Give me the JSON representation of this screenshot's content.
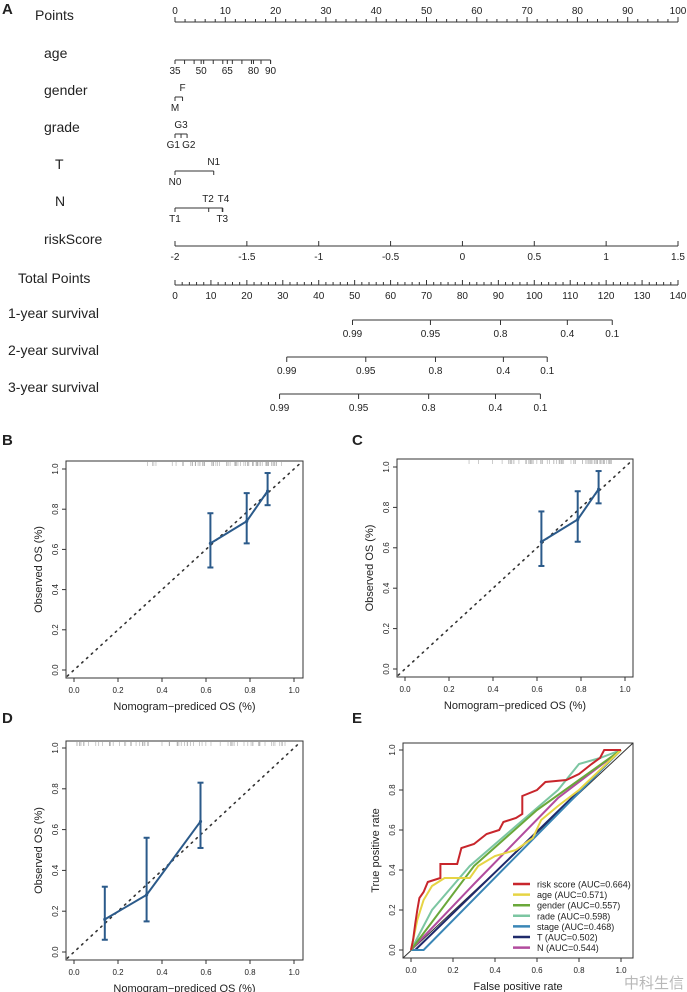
{
  "panel_labels": [
    "A",
    "B",
    "C",
    "D",
    "E"
  ],
  "watermark": "中科生信",
  "chart_data": [
    {
      "type": "nomogram",
      "panel": "A",
      "rows": [
        {
          "label": "Points",
          "kind": "points",
          "ticks": [
            0,
            10,
            20,
            30,
            40,
            50,
            60,
            70,
            80,
            90,
            100
          ]
        },
        {
          "label": "age",
          "kind": "var",
          "ticks": [
            {
              "t": "35",
              "p": 0,
              "pos": "below"
            },
            {
              "t": "50",
              "p": 5.2,
              "pos": "below"
            },
            {
              "t": "65",
              "p": 10.4,
              "pos": "below"
            },
            {
              "t": "80",
              "p": 15.6,
              "pos": "below"
            },
            {
              "t": "90",
              "p": 19
            }
          ],
          "minor_count": 11
        },
        {
          "label": "gender",
          "kind": "var",
          "ticks": [
            {
              "t": "M",
              "p": 0,
              "pos": "below"
            },
            {
              "t": "F",
              "p": 1.5,
              "pos": "above"
            }
          ]
        },
        {
          "label": "grade",
          "kind": "var",
          "ticks": [
            {
              "t": "G1",
              "p": 0,
              "pos": "below"
            },
            {
              "t": "G3",
              "p": 1.2,
              "pos": "above"
            },
            {
              "t": "G2",
              "p": 2.4,
              "pos": "below"
            }
          ]
        },
        {
          "label": "T",
          "kind": "var",
          "ticks": [
            {
              "t": "N0",
              "p": 0,
              "pos": "below"
            },
            {
              "t": "N1",
              "p": 7.7,
              "pos": "above"
            }
          ]
        },
        {
          "label": "N",
          "kind": "var",
          "ticks": [
            {
              "t": "T1",
              "p": 0,
              "pos": "below"
            },
            {
              "t": "T2",
              "p": 6.7,
              "pos": "above"
            },
            {
              "t": "T3",
              "p": 9.4,
              "pos": "below"
            },
            {
              "t": "T4",
              "p": 9.5,
              "pos": "above"
            }
          ]
        },
        {
          "label": "riskScore",
          "kind": "risk",
          "ticks": [
            "-2",
            "-1.5",
            "-1",
            "-0.5",
            "0",
            "0.5",
            "1",
            "1.5"
          ],
          "range": [
            -2,
            1.5
          ]
        },
        {
          "label": "Total Points",
          "kind": "total",
          "ticks": [
            0,
            10,
            20,
            30,
            40,
            50,
            60,
            70,
            80,
            90,
            100,
            110,
            120,
            130,
            140
          ],
          "range": [
            0,
            140
          ]
        },
        {
          "label": "1-year survival",
          "kind": "surv",
          "ticks": [
            {
              "t": "0.99",
              "tp": 49.4
            },
            {
              "t": "0.95",
              "tp": 71.1
            },
            {
              "t": "0.8",
              "tp": 90.6
            },
            {
              "t": "0.4",
              "tp": 109.2
            },
            {
              "t": "0.1",
              "tp": 121.7
            }
          ]
        },
        {
          "label": "2-year survival",
          "kind": "surv",
          "ticks": [
            {
              "t": "0.99",
              "tp": 31.1
            },
            {
              "t": "0.95",
              "tp": 53.1
            },
            {
              "t": "0.8",
              "tp": 72.5
            },
            {
              "t": "0.4",
              "tp": 91.4
            },
            {
              "t": "0.1",
              "tp": 103.6
            }
          ]
        },
        {
          "label": "3-year survival",
          "kind": "surv",
          "ticks": [
            {
              "t": "0.99",
              "tp": 29.1
            },
            {
              "t": "0.95",
              "tp": 51.1
            },
            {
              "t": "0.8",
              "tp": 70.6
            },
            {
              "t": "0.4",
              "tp": 89.2
            },
            {
              "t": "0.1",
              "tp": 101.7
            }
          ]
        }
      ]
    },
    {
      "type": "calibration",
      "panel": "B",
      "xlabel": "Nomogram−prediced OS (%)",
      "ylabel": "Observed OS (%)",
      "xlim": [
        0,
        1
      ],
      "ylim": [
        0,
        1
      ],
      "xticks": [
        "0.0",
        "0.2",
        "0.4",
        "0.6",
        "0.8",
        "1.0"
      ],
      "yticks": [
        "0.0",
        "0.2",
        "0.4",
        "0.6",
        "0.8",
        "1.0"
      ],
      "points": [
        {
          "x": 0.62,
          "y": 0.63,
          "lo": 0.51,
          "hi": 0.78
        },
        {
          "x": 0.785,
          "y": 0.74,
          "lo": 0.63,
          "hi": 0.88
        },
        {
          "x": 0.88,
          "y": 0.89,
          "lo": 0.82,
          "hi": 0.98
        }
      ],
      "color": "#2b5a8a"
    },
    {
      "type": "calibration",
      "panel": "C",
      "xlabel": "Nomogram−prediced OS (%)",
      "ylabel": "Observed OS (%)",
      "xlim": [
        0,
        1
      ],
      "ylim": [
        0,
        1
      ],
      "xticks": [
        "0.0",
        "0.2",
        "0.4",
        "0.6",
        "0.8",
        "1.0"
      ],
      "yticks": [
        "0.0",
        "0.2",
        "0.4",
        "0.6",
        "0.8",
        "1.0"
      ],
      "points": [
        {
          "x": 0.62,
          "y": 0.63,
          "lo": 0.51,
          "hi": 0.78
        },
        {
          "x": 0.785,
          "y": 0.74,
          "lo": 0.63,
          "hi": 0.88
        },
        {
          "x": 0.88,
          "y": 0.89,
          "lo": 0.82,
          "hi": 0.98
        }
      ],
      "color": "#2b5a8a"
    },
    {
      "type": "calibration",
      "panel": "D",
      "xlabel": "Nomogram−prediced OS (%)",
      "ylabel": "Observed OS (%)",
      "xlim": [
        0,
        1
      ],
      "ylim": [
        0,
        1
      ],
      "xticks": [
        "0.0",
        "0.2",
        "0.4",
        "0.6",
        "0.8",
        "1.0"
      ],
      "yticks": [
        "0.0",
        "0.2",
        "0.4",
        "0.6",
        "0.8",
        "1.0"
      ],
      "points": [
        {
          "x": 0.14,
          "y": 0.16,
          "lo": 0.06,
          "hi": 0.32
        },
        {
          "x": 0.33,
          "y": 0.28,
          "lo": 0.15,
          "hi": 0.56
        },
        {
          "x": 0.575,
          "y": 0.64,
          "lo": 0.51,
          "hi": 0.83
        }
      ],
      "color": "#2b5a8a"
    },
    {
      "type": "line",
      "panel": "E",
      "xlabel": "False positive rate",
      "ylabel": "True positive rate",
      "xlim": [
        0,
        1
      ],
      "ylim": [
        0,
        1
      ],
      "xticks": [
        "0.0",
        "0.2",
        "0.4",
        "0.6",
        "0.8",
        "1.0"
      ],
      "yticks": [
        "0.0",
        "0.2",
        "0.4",
        "0.6",
        "0.8",
        "1.0"
      ],
      "legend_position": "bottom-right",
      "series": [
        {
          "name": "risk score (AUC=0.664)",
          "color": "#c8262c",
          "points": [
            [
              0,
              0
            ],
            [
              0.01,
              0.05
            ],
            [
              0.02,
              0.13
            ],
            [
              0.03,
              0.2
            ],
            [
              0.04,
              0.26
            ],
            [
              0.06,
              0.29
            ],
            [
              0.08,
              0.34
            ],
            [
              0.14,
              0.36
            ],
            [
              0.14,
              0.43
            ],
            [
              0.22,
              0.43
            ],
            [
              0.24,
              0.51
            ],
            [
              0.3,
              0.53
            ],
            [
              0.36,
              0.58
            ],
            [
              0.42,
              0.6
            ],
            [
              0.44,
              0.64
            ],
            [
              0.5,
              0.66
            ],
            [
              0.53,
              0.68
            ],
            [
              0.53,
              0.77
            ],
            [
              0.6,
              0.8
            ],
            [
              0.64,
              0.84
            ],
            [
              0.74,
              0.85
            ],
            [
              0.8,
              0.88
            ],
            [
              0.86,
              0.93
            ],
            [
              0.9,
              0.96
            ],
            [
              0.92,
              1
            ],
            [
              1,
              1
            ]
          ]
        },
        {
          "name": "age (AUC=0.571)",
          "color": "#e6d444",
          "points": [
            [
              0,
              0
            ],
            [
              0.03,
              0.15
            ],
            [
              0.06,
              0.25
            ],
            [
              0.1,
              0.32
            ],
            [
              0.16,
              0.36
            ],
            [
              0.28,
              0.36
            ],
            [
              0.32,
              0.42
            ],
            [
              0.4,
              0.47
            ],
            [
              0.5,
              0.5
            ],
            [
              0.58,
              0.56
            ],
            [
              0.62,
              0.65
            ],
            [
              0.7,
              0.72
            ],
            [
              0.8,
              0.8
            ],
            [
              0.9,
              0.9
            ],
            [
              1,
              1
            ]
          ]
        },
        {
          "name": "gender (AUC=0.557)",
          "color": "#6aa83a",
          "points": [
            [
              0,
              0
            ],
            [
              0.3,
              0.42
            ],
            [
              0.6,
              0.7
            ],
            [
              0.8,
              0.85
            ],
            [
              1,
              1
            ]
          ]
        },
        {
          "name": "rade (AUC=0.598)",
          "color": "#7cc6a2",
          "points": [
            [
              0,
              0
            ],
            [
              0.1,
              0.2
            ],
            [
              0.28,
              0.42
            ],
            [
              0.5,
              0.62
            ],
            [
              0.7,
              0.8
            ],
            [
              0.8,
              0.93
            ],
            [
              0.9,
              0.96
            ],
            [
              1,
              1
            ]
          ]
        },
        {
          "name": "stage (AUC=0.468)",
          "color": "#3a86b6",
          "points": [
            [
              0,
              0
            ],
            [
              0.06,
              0
            ],
            [
              1,
              1
            ]
          ]
        },
        {
          "name": "T (AUC=0.502)",
          "color": "#1f2a6b",
          "points": [
            [
              0,
              0
            ],
            [
              0.02,
              0
            ],
            [
              1,
              1
            ]
          ]
        },
        {
          "name": "N (AUC=0.544)",
          "color": "#b24c9e",
          "points": [
            [
              0,
              0
            ],
            [
              0.3,
              0.33
            ],
            [
              0.7,
              0.76
            ],
            [
              1,
              1
            ]
          ]
        }
      ]
    }
  ]
}
